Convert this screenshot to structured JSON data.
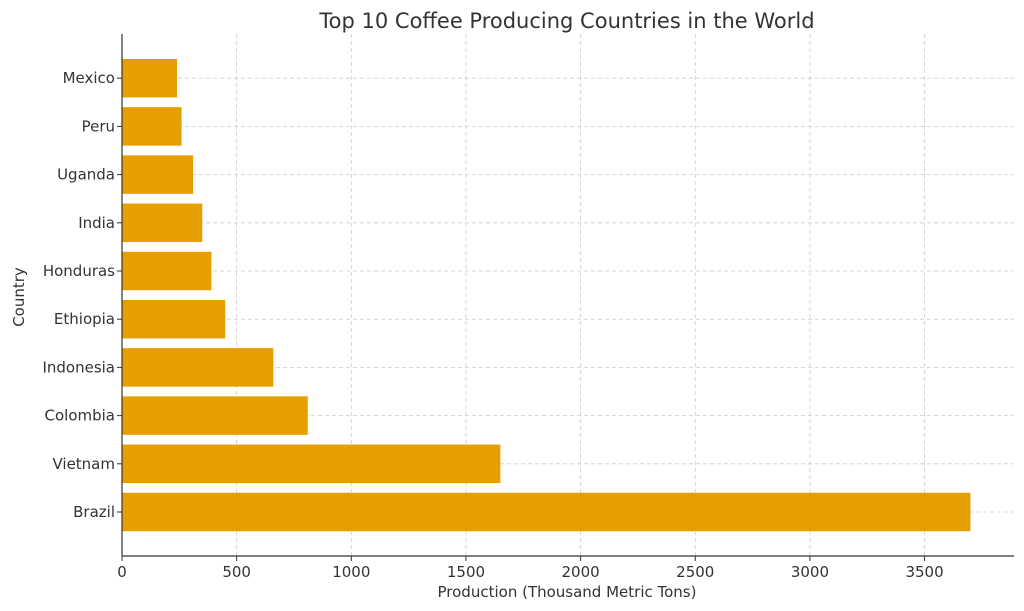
{
  "chart_data": {
    "type": "bar",
    "orientation": "horizontal",
    "title": "Top 10 Coffee Producing Countries in the World",
    "xlabel": "Production (Thousand Metric Tons)",
    "ylabel": "Country",
    "categories": [
      "Brazil",
      "Vietnam",
      "Colombia",
      "Indonesia",
      "Ethiopia",
      "Honduras",
      "India",
      "Uganda",
      "Peru",
      "Mexico"
    ],
    "values": [
      3700,
      1650,
      810,
      660,
      450,
      390,
      350,
      310,
      260,
      240
    ],
    "xlim": [
      0,
      3890
    ],
    "xticks": [
      0,
      500,
      1000,
      1500,
      2000,
      2500,
      3000,
      3500
    ],
    "bar_color": "#e5a000",
    "grid": true
  }
}
